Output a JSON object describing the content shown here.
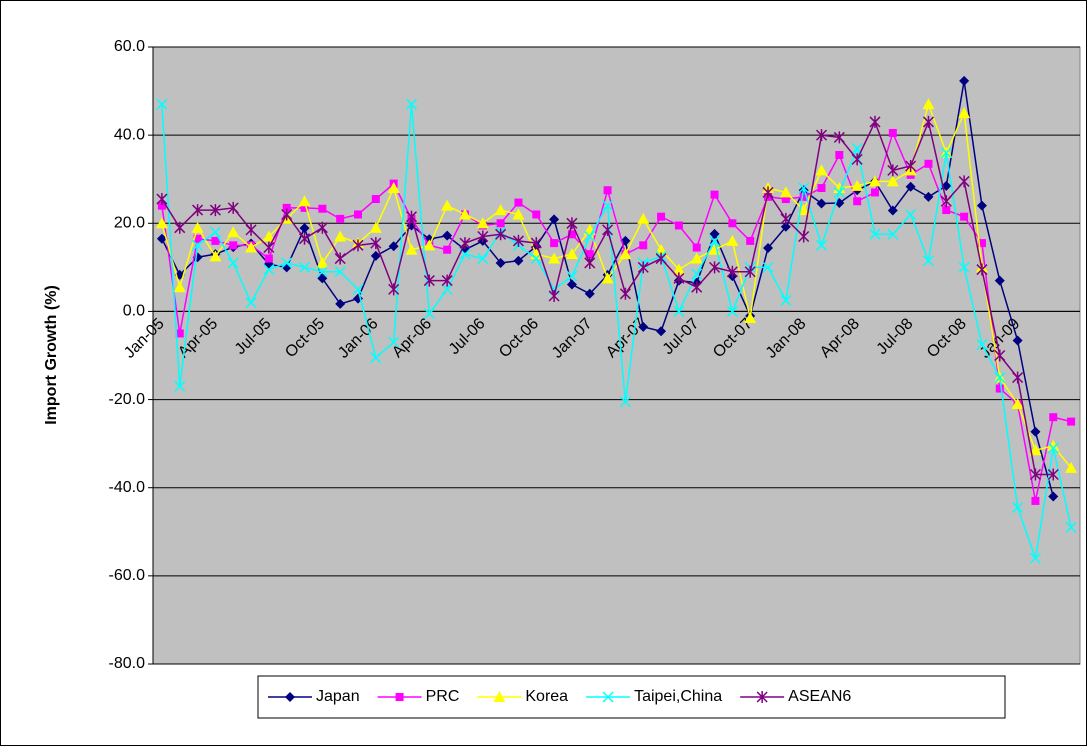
{
  "chart_data": {
    "type": "line",
    "y_label": "Import Growth (%)",
    "categories": [
      "Jan-05",
      null,
      null,
      "Apr-05",
      null,
      null,
      "Jul-05",
      null,
      null,
      "Oct-05",
      null,
      null,
      "Jan-06",
      null,
      null,
      "Apr-06",
      null,
      null,
      "Jul-06",
      null,
      null,
      "Oct-06",
      null,
      null,
      "Jan-07",
      null,
      null,
      "Apr-07",
      null,
      null,
      "Jul-07",
      null,
      null,
      "Oct-07",
      null,
      null,
      "Jan-08",
      null,
      null,
      "Apr-08",
      null,
      null,
      "Jul-08",
      null,
      null,
      "Oct-08",
      null,
      null,
      "Jan-09",
      null,
      null,
      null
    ],
    "ylim": [
      -80,
      60
    ],
    "yticks": [
      {
        "value": -80,
        "label": "-80.0"
      },
      {
        "value": -60,
        "label": "-60.0"
      },
      {
        "value": -40,
        "label": "-40.0"
      },
      {
        "value": -20,
        "label": "-20.0"
      },
      {
        "value": 0,
        "label": "0.0"
      },
      {
        "value": 20,
        "label": "20.0"
      },
      {
        "value": 40,
        "label": "40.0"
      },
      {
        "value": 60,
        "label": "60.0"
      }
    ],
    "grid": true,
    "plot_background": "#c0c0c0",
    "legend_position": "bottom",
    "series": [
      {
        "name": "Japan",
        "color": "#000080",
        "marker": "diamond",
        "values": [
          16.5,
          8.3,
          12.3,
          13.0,
          14.6,
          15.4,
          10.7,
          10.0,
          18.9,
          7.5,
          1.7,
          2.9,
          12.6,
          14.8,
          19.5,
          16.4,
          17.2,
          14.0,
          16.0,
          11.0,
          11.5,
          14.8,
          20.9,
          6.1,
          4.0,
          8.3,
          16.0,
          -3.5,
          -4.5,
          7.0,
          6.5,
          17.6,
          8.0,
          -1.0,
          14.4,
          19.2,
          27.5,
          24.5,
          24.6,
          27.5,
          29.5,
          22.9,
          28.3,
          26.0,
          28.5,
          52.3,
          24.0,
          7.0,
          -6.6,
          -27.3,
          -42.0,
          null
        ]
      },
      {
        "name": "PRC",
        "color": "#ff00ff",
        "marker": "square",
        "values": [
          24,
          -5,
          16.5,
          16,
          15,
          15,
          12,
          23.5,
          23.5,
          23.3,
          21,
          22,
          25.5,
          29,
          21,
          15,
          14,
          22,
          19.5,
          20,
          24.7,
          22,
          15.5,
          17.5,
          13,
          27.5,
          13,
          15,
          21.5,
          19.5,
          14.5,
          26.5,
          20,
          16,
          26,
          25.5,
          26,
          28,
          35.5,
          25,
          27,
          40.5,
          31,
          33.5,
          23,
          21.5,
          15.5,
          -17.5,
          -21,
          -43,
          -24,
          -25
        ]
      },
      {
        "name": "Korea",
        "color": "#ffff00",
        "marker": "triangle",
        "values": [
          20,
          5.5,
          19,
          12.5,
          18,
          14.5,
          17,
          21,
          25,
          11,
          17,
          15.5,
          19,
          28,
          14,
          15,
          24,
          22,
          20,
          23,
          22,
          13,
          12,
          13,
          18.5,
          7.5,
          13,
          21,
          14,
          9.5,
          12,
          14,
          16,
          -1.5,
          28,
          27,
          23,
          32,
          28,
          28.5,
          29.5,
          29.5,
          32,
          47,
          36,
          45,
          10,
          -15,
          -21,
          -31.5,
          -30.5,
          -35.5
        ]
      },
      {
        "name": "Taipei,China",
        "color": "#00ffff",
        "marker": "x",
        "values": [
          47,
          -17,
          15,
          18,
          11,
          2,
          9.5,
          11,
          10,
          9,
          9,
          5,
          -10.5,
          -7,
          47,
          -0.5,
          5,
          13,
          12,
          18,
          15,
          12,
          5,
          8,
          17,
          24,
          -20.5,
          11,
          12.5,
          0,
          8.5,
          16,
          0,
          10,
          10,
          2.5,
          28,
          15,
          27,
          37,
          17.5,
          17.5,
          22,
          11.5,
          36,
          10,
          -7.5,
          -15,
          -44.5,
          -56,
          -31,
          -49
        ]
      },
      {
        "name": "ASEAN6",
        "color": "#800080",
        "marker": "asterisk",
        "values": [
          25.5,
          19,
          23,
          23,
          23.5,
          18.5,
          14.5,
          22,
          16.5,
          19,
          12,
          15,
          15.5,
          5,
          21.5,
          7,
          7,
          15.5,
          17,
          17.5,
          16,
          15.5,
          3.5,
          20,
          11,
          18.5,
          4,
          10,
          12,
          7.5,
          5.5,
          10,
          9,
          9,
          27,
          21,
          17,
          40,
          39.5,
          34.5,
          43,
          32,
          33,
          43,
          25,
          29.5,
          9.5,
          -10,
          -15,
          -37,
          -37,
          null
        ]
      }
    ]
  }
}
